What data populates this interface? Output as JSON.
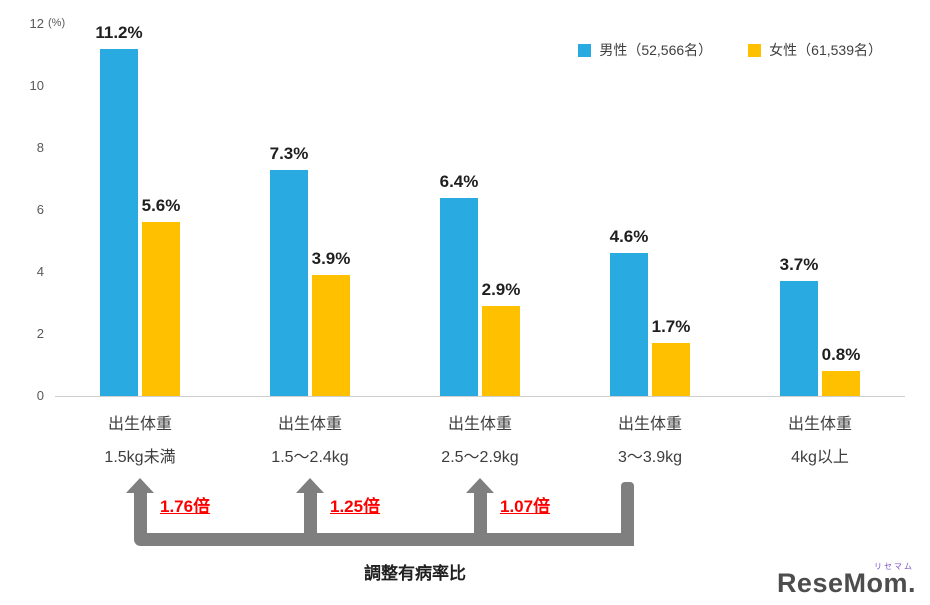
{
  "chart_data": {
    "type": "bar",
    "title": "",
    "unit_label": "(%)",
    "ylim": [
      0,
      12
    ],
    "yticks": [
      0,
      2,
      4,
      6,
      8,
      10,
      12
    ],
    "grid": false,
    "legend_position": "top-right",
    "categories": [
      {
        "top": "出生体重",
        "bottom": "1.5kg未満"
      },
      {
        "top": "出生体重",
        "bottom": "1.5～2.4kg"
      },
      {
        "top": "出生体重",
        "bottom": "2.5～2.9kg"
      },
      {
        "top": "出生体重",
        "bottom": "3～3.9kg"
      },
      {
        "top": "出生体重",
        "bottom": "4kg以上"
      }
    ],
    "series": [
      {
        "name": "男性（52,566名）",
        "color": "#29abe2",
        "values": [
          11.2,
          7.3,
          6.4,
          4.6,
          3.7
        ]
      },
      {
        "name": "女性（61,539名）",
        "color": "#ffc000",
        "values": [
          5.6,
          3.9,
          2.9,
          1.7,
          0.8
        ]
      }
    ],
    "annotations": {
      "ratio_labels": [
        "1.76倍",
        "1.25倍",
        "1.07倍"
      ],
      "ratio_color": "#ff0000",
      "bracket_color": "#7f7f7f",
      "caption": "調整有病率比",
      "baseline_category_index": 3
    }
  },
  "watermark": {
    "text": "ReseMom",
    "dot": ".",
    "small_text": "リセマム"
  }
}
